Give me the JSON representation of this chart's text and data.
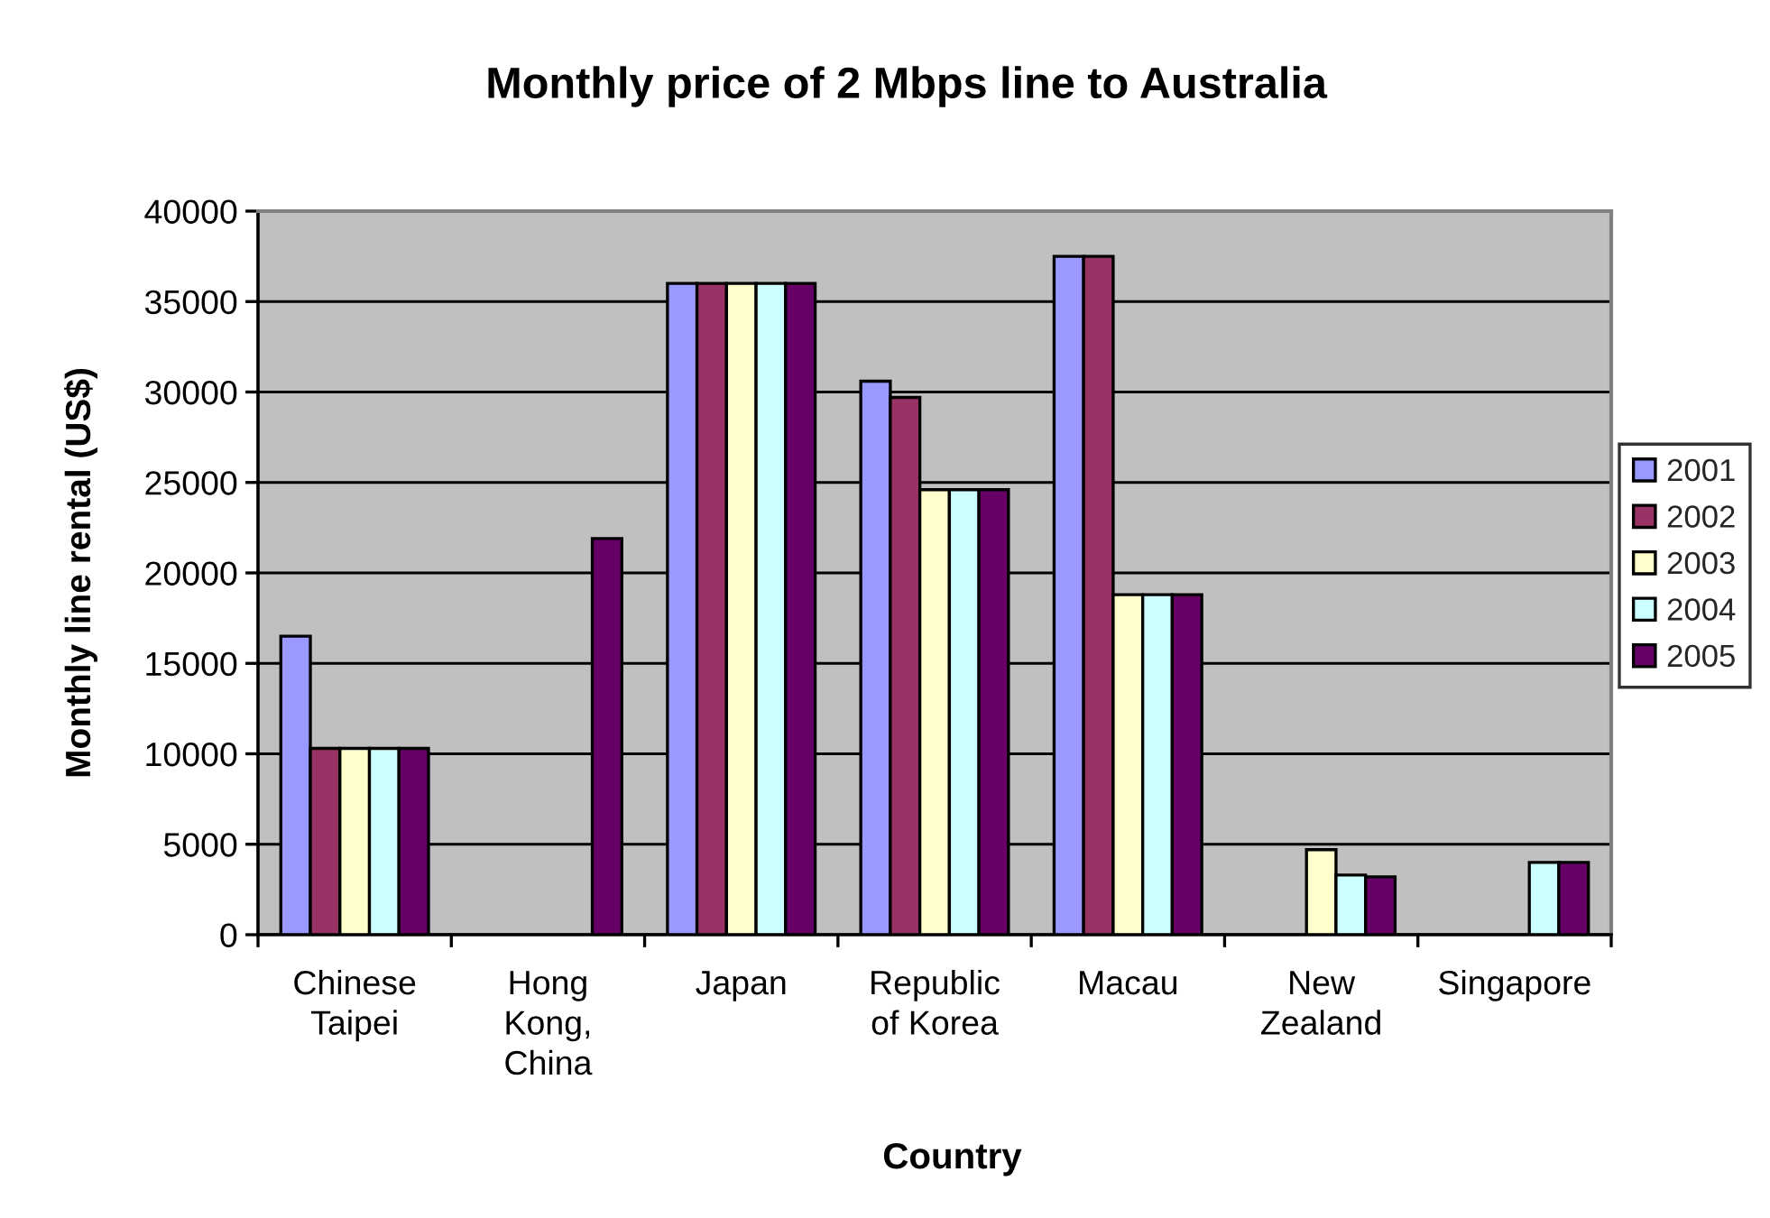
{
  "chart_data": {
    "type": "bar",
    "title": "Monthly price of 2 Mbps line to Australia",
    "xlabel": "Country",
    "ylabel": "Monthly line rental (US$)",
    "categories": [
      "Chinese\nTaipei",
      "Hong\nKong,\nChina",
      "Japan",
      "Republic\nof Korea",
      "Macau",
      "New\nZealand",
      "Singapore"
    ],
    "series": [
      {
        "name": "2001",
        "color": "#9999ff",
        "values": [
          16500,
          null,
          36000,
          30600,
          37500,
          null,
          null
        ]
      },
      {
        "name": "2002",
        "color": "#993366",
        "values": [
          10300,
          null,
          36000,
          29700,
          37500,
          null,
          null
        ]
      },
      {
        "name": "2003",
        "color": "#ffffcc",
        "values": [
          10300,
          null,
          36000,
          24600,
          18800,
          4700,
          null
        ]
      },
      {
        "name": "2004",
        "color": "#ccffff",
        "values": [
          10300,
          null,
          36000,
          24600,
          18800,
          3300,
          4000
        ]
      },
      {
        "name": "2005",
        "color": "#660066",
        "values": [
          10300,
          21900,
          36000,
          24600,
          18800,
          3200,
          4000
        ]
      }
    ],
    "ylim": [
      0,
      40000
    ],
    "yticks": [
      0,
      5000,
      10000,
      15000,
      20000,
      25000,
      30000,
      35000,
      40000
    ],
    "grid": "y",
    "legend": "right"
  }
}
